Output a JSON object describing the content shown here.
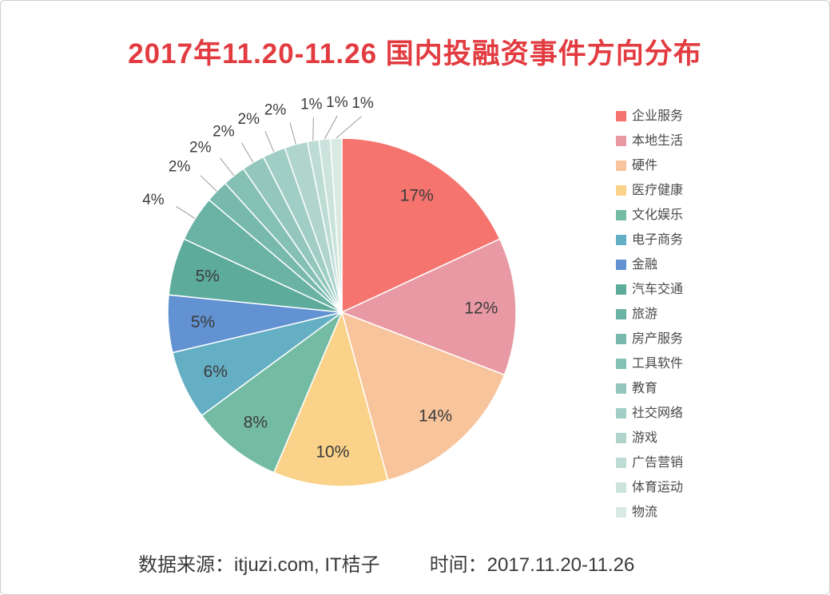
{
  "title": "2017年11.20-11.26 国内投融资事件方向分布",
  "footer": {
    "source": "数据来源：itjuzi.com, IT桔子",
    "time": "时间：2017.11.20-11.26"
  },
  "colors": {
    "title": "#e23b40",
    "label_text": "#3b3b3b",
    "leader_line": "#9a9a9a",
    "background": "#ffffff"
  },
  "chart_data": {
    "type": "pie",
    "title": "2017年11.20-11.26 国内投融资事件方向分布",
    "start_angle_deg": -90,
    "direction": "clockwise",
    "legend_position": "right",
    "value_format": "percent",
    "slices": [
      {
        "label": "企业服务",
        "percent": 17,
        "color": "#f5746e"
      },
      {
        "label": "本地生活",
        "percent": 12,
        "color": "#e899a4"
      },
      {
        "label": "硬件",
        "percent": 14,
        "color": "#f8c49c"
      },
      {
        "label": "医疗健康",
        "percent": 10,
        "color": "#fad289"
      },
      {
        "label": "文化娱乐",
        "percent": 8,
        "color": "#74bba3"
      },
      {
        "label": "电子商务",
        "percent": 6,
        "color": "#64afc4"
      },
      {
        "label": "金融",
        "percent": 5,
        "color": "#6292d2"
      },
      {
        "label": "汽车交通",
        "percent": 5,
        "color": "#5cab9b"
      },
      {
        "label": "旅游",
        "percent": 4,
        "color": "#69b2a4"
      },
      {
        "label": "房产服务",
        "percent": 2,
        "color": "#77b9ac"
      },
      {
        "label": "工具软件",
        "percent": 2,
        "color": "#85c0b4"
      },
      {
        "label": "教育",
        "percent": 2,
        "color": "#93c7bc"
      },
      {
        "label": "社交网络",
        "percent": 2,
        "color": "#a1cec4"
      },
      {
        "label": "游戏",
        "percent": 2,
        "color": "#afd5cc"
      },
      {
        "label": "广告营销",
        "percent": 1,
        "color": "#bddcd4"
      },
      {
        "label": "体育运动",
        "percent": 1,
        "color": "#cbe3dc"
      },
      {
        "label": "物流",
        "percent": 1,
        "color": "#d9eae4"
      }
    ]
  }
}
